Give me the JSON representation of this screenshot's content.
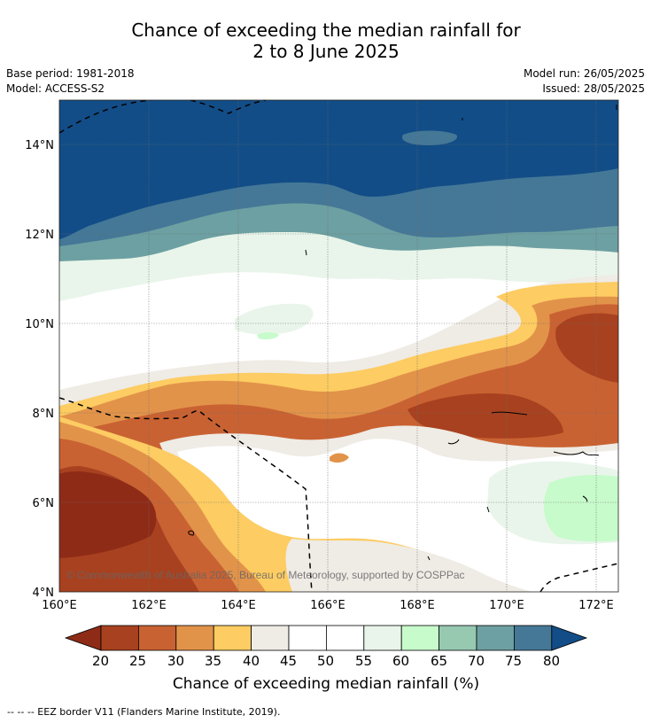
{
  "title": {
    "line1": "Chance of exceeding the median rainfall for",
    "line2": "2 to 8 June 2025"
  },
  "meta": {
    "base_period": "Base period: 1981-2018",
    "model": "Model: ACCESS-S2",
    "model_run": "Model run: 26/05/2025",
    "issued": "Issued: 28/05/2025"
  },
  "map": {
    "copyright": "© Commonwealth of Australia 2025, Bureau of Meteorology, supported by COSPPac",
    "lon_labels": [
      "160°E",
      "162°E",
      "164°E",
      "166°E",
      "168°E",
      "170°E",
      "172°E"
    ],
    "lat_labels": [
      "14°N",
      "12°N",
      "10°N",
      "8°N",
      "6°N",
      "4°N"
    ]
  },
  "colorbar": {
    "ticks": [
      "20",
      "25",
      "30",
      "35",
      "40",
      "45",
      "50",
      "55",
      "60",
      "65",
      "70",
      "75",
      "80"
    ],
    "title": "Chance of exceeding median rainfall (%)",
    "colors": {
      "lt20": "#8e2b17",
      "20-25": "#a8411f",
      "25-30": "#c96232",
      "30-35": "#e2934a",
      "35-40": "#fdcc62",
      "40-45": "#efebe5",
      "45-50": "#ffffff",
      "50-55": "#ffffff",
      "55-60": "#e9f5ea",
      "60-65": "#c7fbcb",
      "65-70": "#97c9b1",
      "70-75": "#6da0a2",
      "75-80": "#457897",
      "gt80": "#124d87"
    }
  },
  "footnote": "--  --  -- EEZ border V11 (Flanders Marine Institute, 2019)."
}
